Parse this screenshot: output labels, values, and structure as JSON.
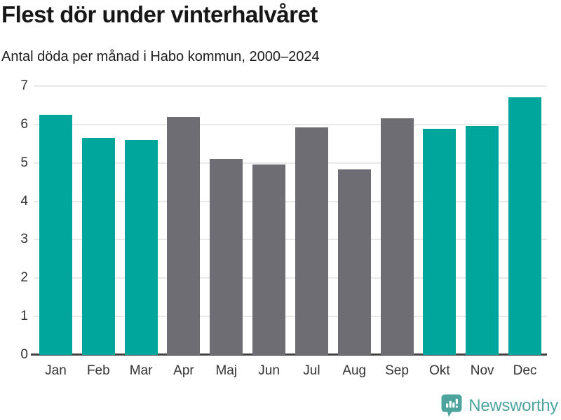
{
  "header": {
    "title": "Flest dör under vinterhalvåret",
    "subtitle": "Antal döda per månad i Habo kommun, 2000–2024"
  },
  "chart_data": {
    "type": "bar",
    "title": "Flest dör under vinterhalvåret",
    "subtitle": "Antal döda per månad i Habo kommun, 2000–2024",
    "categories": [
      "Jan",
      "Feb",
      "Mar",
      "Apr",
      "Maj",
      "Jun",
      "Jul",
      "Aug",
      "Sep",
      "Okt",
      "Nov",
      "Dec"
    ],
    "values": [
      6.25,
      5.65,
      5.6,
      6.2,
      5.1,
      4.95,
      5.92,
      4.84,
      6.16,
      5.88,
      5.97,
      6.7
    ],
    "seasons": [
      "winter",
      "winter",
      "winter",
      "summer",
      "summer",
      "summer",
      "summer",
      "summer",
      "summer",
      "winter",
      "winter",
      "winter"
    ],
    "colors": {
      "winter": "#00a59b",
      "summer": "#6e6d74"
    },
    "xlabel": "",
    "ylabel": "",
    "ylim": [
      0,
      7
    ],
    "yticks": [
      0,
      1,
      2,
      3,
      4,
      5,
      6,
      7
    ],
    "grid": true,
    "legend": "none"
  },
  "footer": {
    "brand": "Newsworthy",
    "brand_color": "#4da49e",
    "logo_icon": "bar-chart-speech-bubble-icon"
  }
}
